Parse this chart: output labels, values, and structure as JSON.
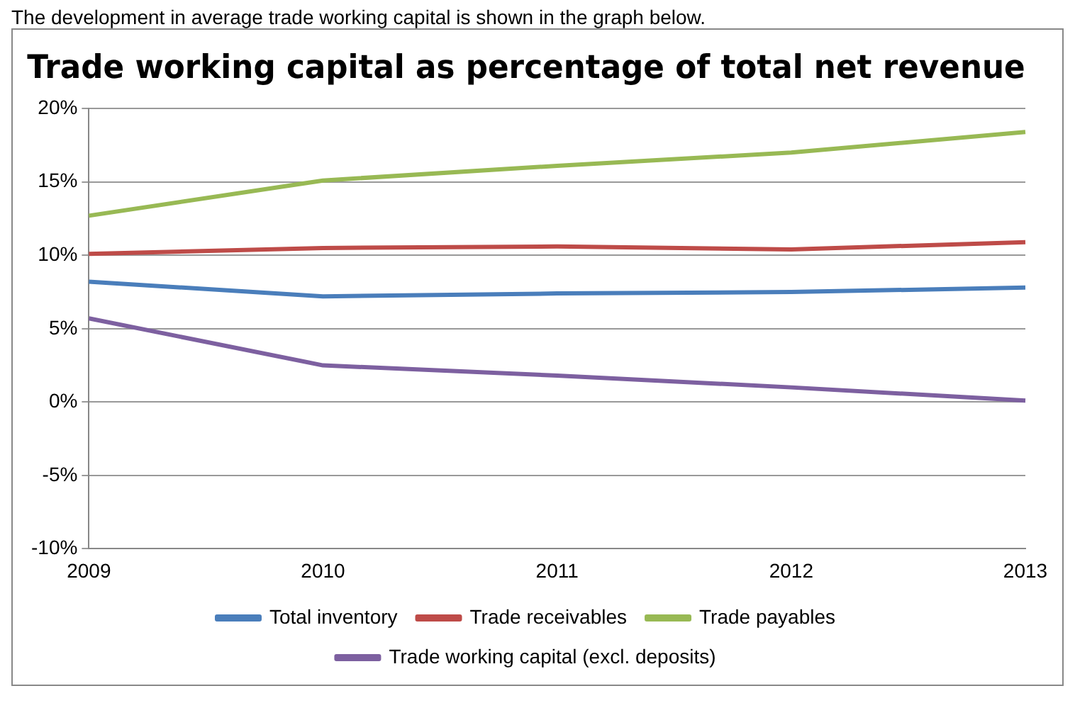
{
  "chart_data": {
    "type": "line",
    "title": "Trade working capital as percentage of total net revenue",
    "annotations": [
      "The development in average trade working capital is shown in the graph below."
    ],
    "categories": [
      "2009",
      "2010",
      "2011",
      "2012",
      "2013"
    ],
    "series": [
      {
        "name": "Total inventory",
        "color": "#4a7ebb",
        "values": [
          8.2,
          7.2,
          7.4,
          7.5,
          7.8
        ]
      },
      {
        "name": "Trade receivables",
        "color": "#be4b48",
        "values": [
          10.1,
          10.5,
          10.6,
          10.4,
          10.9
        ]
      },
      {
        "name": "Trade payables",
        "color": "#98b954",
        "values": [
          12.7,
          15.1,
          16.1,
          17.0,
          18.4
        ]
      },
      {
        "name": "Trade working capital (excl. deposits)",
        "color": "#7d60a0",
        "values": [
          5.7,
          2.5,
          1.8,
          1.0,
          0.1
        ]
      }
    ],
    "ylim": [
      -10,
      20
    ],
    "yticks": [
      {
        "value": -10,
        "label": "-10%"
      },
      {
        "value": -5,
        "label": "-5%"
      },
      {
        "value": 0,
        "label": "0%"
      },
      {
        "value": 5,
        "label": "5%"
      },
      {
        "value": 10,
        "label": "10%"
      },
      {
        "value": 15,
        "label": "15%"
      },
      {
        "value": 20,
        "label": "20%"
      }
    ],
    "grid": "y",
    "legend": "bottom",
    "marker": "none",
    "line_style": "solid"
  }
}
